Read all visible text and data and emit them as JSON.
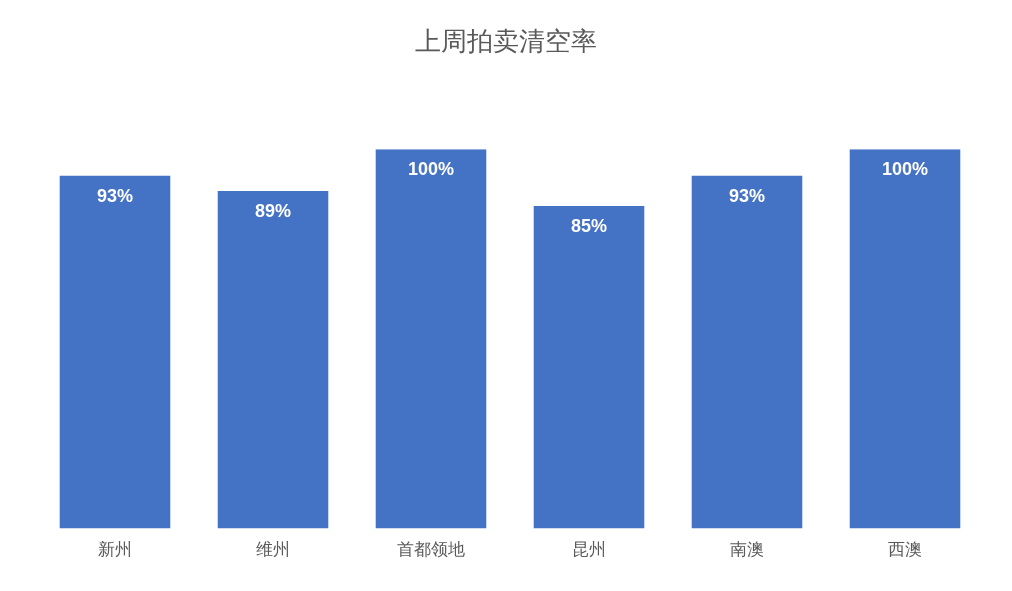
{
  "chart_data": {
    "type": "bar",
    "title": "上周拍卖清空率",
    "categories": [
      "新州",
      "维州",
      "首都领地",
      "昆州",
      "南澳",
      "西澳"
    ],
    "values": [
      93,
      89,
      100,
      85,
      93,
      100
    ],
    "value_labels": [
      "93%",
      "89%",
      "100%",
      "85%",
      "93%",
      "100%"
    ],
    "color": "#4472c4",
    "tick_labels": "x",
    "grid": false,
    "legend": false
  }
}
